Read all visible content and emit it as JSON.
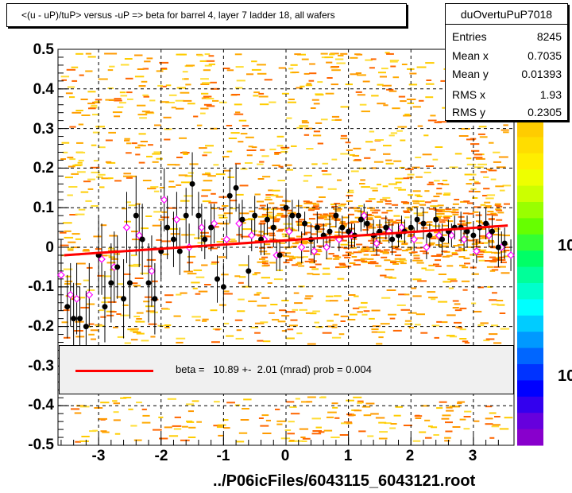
{
  "title": "<(u - uP)/tuP> versus  -uP => beta for barrel 4, layer 7 ladder 18, all wafers",
  "stats": {
    "name": "duOvertuPuP7018",
    "rows": [
      {
        "label": "Entries",
        "value": "8245"
      },
      {
        "label": "Mean x",
        "value": "0.7035"
      },
      {
        "label": "Mean y",
        "value": "0.01393"
      },
      {
        "label": "RMS x",
        "value": "1.93"
      },
      {
        "label": "RMS y",
        "value": "0.2305"
      }
    ]
  },
  "legend": {
    "text": "beta =   10.89 +-  2.01 (mrad) prob = 0.004",
    "line_color": "#ff0000"
  },
  "file_label": "../P06icFiles/6043115_6043121.root",
  "palette_labels": [
    "10",
    "10"
  ],
  "chart_data": {
    "type": "scatter",
    "xlim": [
      -3.65,
      3.65
    ],
    "ylim": [
      -0.5,
      0.5
    ],
    "x_ticks": [
      "-3",
      "-2",
      "-1",
      "0",
      "1",
      "2",
      "3"
    ],
    "y_ticks": [
      "0.5",
      "0.4",
      "0.3",
      "0.2",
      "0.1",
      "0",
      "-0.1",
      "-0.2",
      "-0.3",
      "-0.4",
      "-0.5"
    ],
    "grid": true,
    "fit_line": {
      "x": [
        -3.55,
        3.55
      ],
      "y": [
        -0.02,
        0.055
      ],
      "color": "#ff0000"
    },
    "profile_black": {
      "x": [
        -3.5,
        -3.4,
        -3.3,
        -3.2,
        -3.0,
        -2.9,
        -2.8,
        -2.7,
        -2.6,
        -2.5,
        -2.4,
        -2.3,
        -2.2,
        -2.1,
        -2.0,
        -1.9,
        -1.8,
        -1.7,
        -1.6,
        -1.5,
        -1.4,
        -1.3,
        -1.2,
        -1.1,
        -1.0,
        -0.9,
        -0.8,
        -0.7,
        -0.6,
        -0.5,
        -0.4,
        -0.3,
        -0.2,
        -0.1,
        0.0,
        0.1,
        0.2,
        0.3,
        0.4,
        0.5,
        0.6,
        0.7,
        0.8,
        0.9,
        1.0,
        1.1,
        1.2,
        1.3,
        1.4,
        1.5,
        1.6,
        1.7,
        1.8,
        1.9,
        2.0,
        2.1,
        2.2,
        2.3,
        2.4,
        2.5,
        2.6,
        2.7,
        2.8,
        2.9,
        3.0,
        3.1,
        3.2,
        3.3,
        3.4,
        3.5
      ],
      "y": [
        -0.15,
        -0.18,
        -0.18,
        -0.2,
        -0.02,
        -0.15,
        -0.09,
        -0.05,
        -0.13,
        -0.09,
        0.08,
        0.02,
        -0.09,
        -0.13,
        -0.01,
        0.05,
        0.02,
        -0.01,
        0.08,
        0.16,
        0.08,
        0.02,
        0.05,
        -0.08,
        -0.1,
        0.13,
        0.15,
        0.07,
        -0.06,
        0.08,
        0.02,
        0.07,
        0.05,
        -0.02,
        0.1,
        0.08,
        0.08,
        0.06,
        0.02,
        0.05,
        0.03,
        0.04,
        0.08,
        0.05,
        0.04,
        0.03,
        0.07,
        0.06,
        0.03,
        0.04,
        0.05,
        0.02,
        0.03,
        0.04,
        0.05,
        0.07,
        0.06,
        0.03,
        0.07,
        0.02,
        0.04,
        0.05,
        0.05,
        0.04,
        0.03,
        0.05,
        0.06,
        0.04,
        0.0,
        0.01
      ],
      "err": [
        0.08,
        0.09,
        0.08,
        0.09,
        0.1,
        0.09,
        0.1,
        0.08,
        0.1,
        0.09,
        0.1,
        0.09,
        0.1,
        0.09,
        0.07,
        0.08,
        0.07,
        0.06,
        0.07,
        0.08,
        0.06,
        0.05,
        0.06,
        0.06,
        0.06,
        0.07,
        0.06,
        0.05,
        0.04,
        0.05,
        0.04,
        0.04,
        0.05,
        0.04,
        0.05,
        0.04,
        0.04,
        0.03,
        0.04,
        0.04,
        0.03,
        0.04,
        0.03,
        0.03,
        0.04,
        0.03,
        0.03,
        0.03,
        0.04,
        0.03,
        0.03,
        0.04,
        0.03,
        0.03,
        0.03,
        0.03,
        0.04,
        0.03,
        0.03,
        0.04,
        0.03,
        0.03,
        0.04,
        0.04,
        0.03,
        0.04,
        0.04,
        0.04,
        0.05,
        0.04
      ]
    },
    "profile_magenta": {
      "x": [
        -3.6,
        -3.45,
        -3.35,
        -3.15,
        -2.95,
        -2.75,
        -2.55,
        -2.35,
        -2.15,
        -1.95,
        -1.75,
        -1.55,
        -1.35,
        -1.15,
        -0.95,
        -0.75,
        -0.55,
        -0.35,
        -0.15,
        0.05,
        0.25,
        0.45,
        0.65,
        0.85,
        1.05,
        1.25,
        1.45,
        1.65,
        1.85,
        2.05,
        2.25,
        2.45,
        2.65,
        2.85,
        3.05,
        3.25,
        3.45,
        3.6
      ],
      "y": [
        -0.07,
        -0.12,
        -0.13,
        -0.12,
        -0.03,
        -0.05,
        0.05,
        0.03,
        -0.06,
        0.12,
        0.07,
        0.0,
        0.05,
        0.06,
        0.02,
        0.06,
        0.03,
        0.02,
        -0.02,
        0.04,
        0.0,
        -0.01,
        0.0,
        0.02,
        0.03,
        0.08,
        0.01,
        0.04,
        0.05,
        0.02,
        0.0,
        0.03,
        0.03,
        0.02,
        -0.01,
        0.03,
        0.0,
        -0.02
      ],
      "err": [
        0.09,
        0.08,
        0.09,
        0.08,
        0.09,
        0.09,
        0.09,
        0.08,
        0.09,
        0.08,
        0.07,
        0.06,
        0.06,
        0.05,
        0.05,
        0.05,
        0.04,
        0.04,
        0.04,
        0.04,
        0.04,
        0.03,
        0.03,
        0.03,
        0.03,
        0.03,
        0.03,
        0.03,
        0.03,
        0.03,
        0.03,
        0.03,
        0.03,
        0.03,
        0.03,
        0.03,
        0.04,
        0.04
      ]
    }
  }
}
